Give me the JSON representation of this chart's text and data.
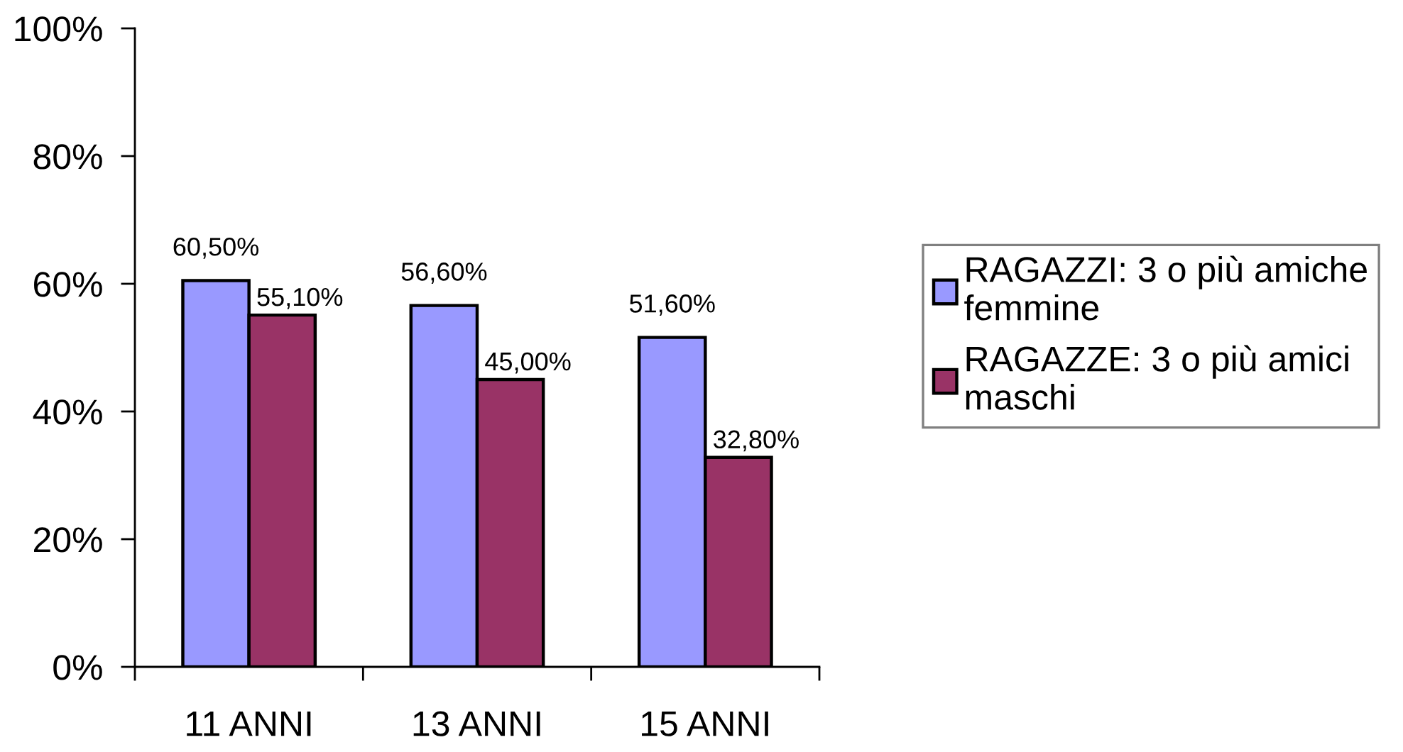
{
  "chart_data": {
    "type": "bar",
    "categories": [
      "11 ANNI",
      "13 ANNI",
      "15 ANNI"
    ],
    "series": [
      {
        "name": "RAGAZZI: 3 o più amiche femmine",
        "color": "#9999ff",
        "values": [
          60.5,
          56.6,
          51.6
        ],
        "value_labels": [
          "60,50%",
          "56,60%",
          "51,60%"
        ]
      },
      {
        "name": "RAGAZZE: 3 o più amici maschi",
        "color": "#993366",
        "values": [
          55.1,
          45.0,
          32.8
        ],
        "value_labels": [
          "55,10%",
          "45,00%",
          "32,80%"
        ]
      }
    ],
    "ylim": [
      0,
      100
    ],
    "yticks": [
      {
        "value": 0,
        "label": "0%"
      },
      {
        "value": 20,
        "label": "20%"
      },
      {
        "value": 40,
        "label": "40%"
      },
      {
        "value": 60,
        "label": "60%"
      },
      {
        "value": 80,
        "label": "80%"
      },
      {
        "value": 100,
        "label": "100%"
      }
    ],
    "legend": "right",
    "grid": false
  }
}
